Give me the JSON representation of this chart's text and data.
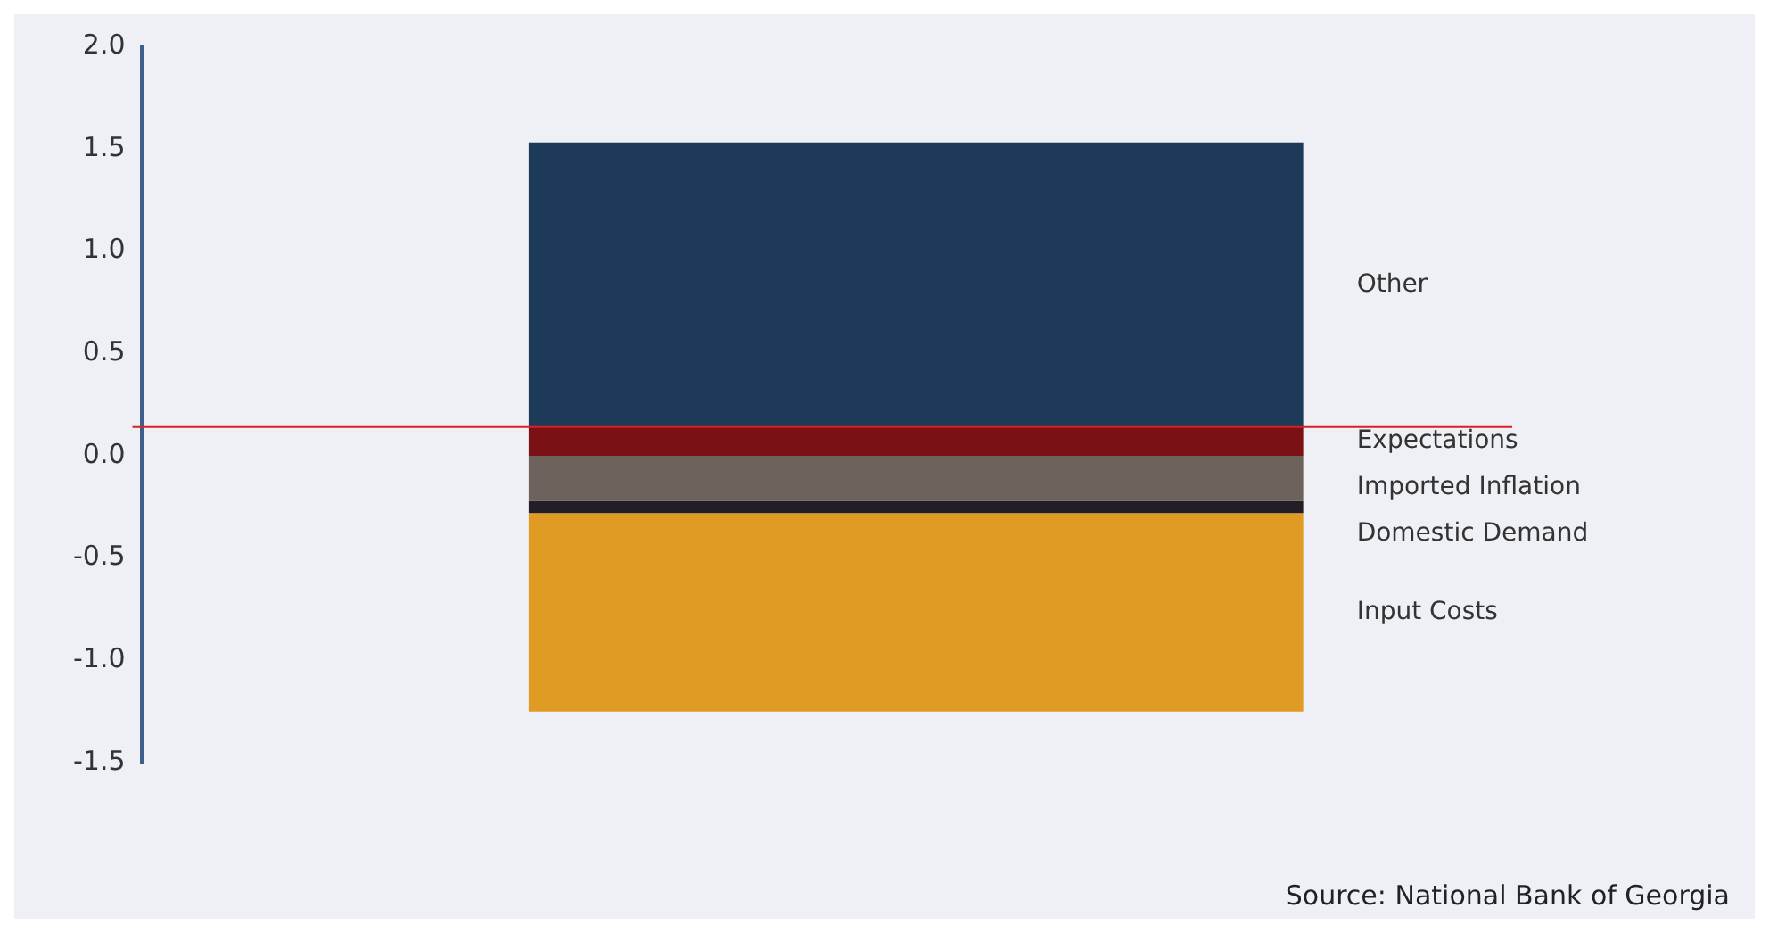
{
  "chart_data": {
    "type": "bar",
    "stacked": true,
    "categories": [
      null
    ],
    "series": [
      {
        "name": "Expectations",
        "color": "#7a1115",
        "values": [
          0.14
        ]
      },
      {
        "name": "Imported Inflation",
        "color": "#6e625c",
        "values": [
          -0.22
        ]
      },
      {
        "name": "Domestic Demand",
        "color": "#231e26",
        "values": [
          -0.06
        ]
      },
      {
        "name": "Input Costs",
        "color": "#e09b25",
        "values": [
          -0.97
        ]
      },
      {
        "name": "Other",
        "color": "#1d3a58",
        "values": [
          1.39
        ]
      }
    ],
    "ylim": [
      -1.5,
      2.0
    ],
    "yticks": [
      {
        "value": -1.5,
        "label": "-1.5"
      },
      {
        "value": -1.0,
        "label": "-1.0"
      },
      {
        "value": -0.5,
        "label": "-0.5"
      },
      {
        "value": 0,
        "label": "0.0"
      },
      {
        "value": 0.5,
        "label": "0.5"
      },
      {
        "value": 1.0,
        "label": "1.0"
      },
      {
        "value": 1.5,
        "label": "1.5"
      },
      {
        "value": 2.0,
        "label": "2.0"
      }
    ],
    "ref_lines": [
      {
        "axis": "y",
        "value": 0.14,
        "color": "#d9202a"
      }
    ],
    "annotations": [
      "Source: National Bank of Georgia"
    ],
    "grid": false,
    "legend": false
  }
}
